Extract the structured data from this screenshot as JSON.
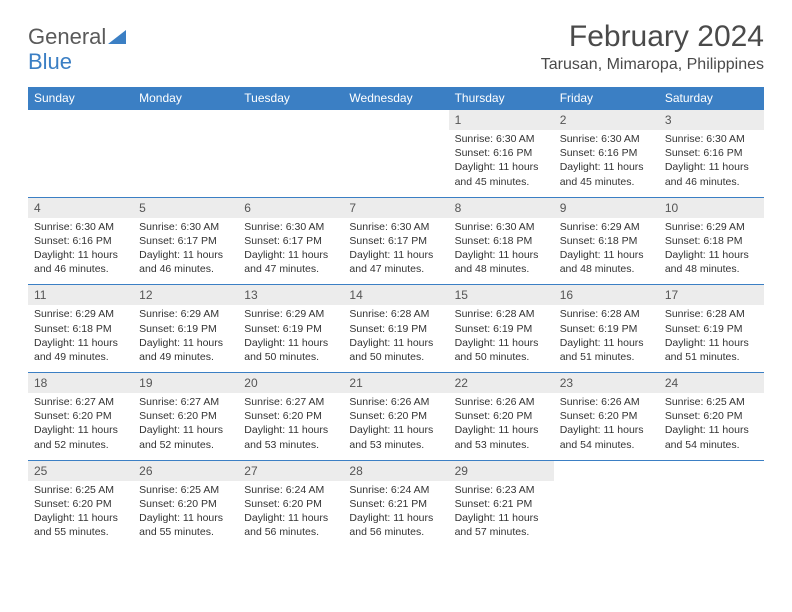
{
  "logo": {
    "text_general": "General",
    "text_blue": "Blue",
    "triangle_color": "#3b7fc4"
  },
  "title": "February 2024",
  "location": "Tarusan, Mimaropa, Philippines",
  "header_bg": "#3b7fc4",
  "header_text_color": "#ffffff",
  "daynum_bg": "#ececec",
  "divider_color": "#3b7fc4",
  "day_headers": [
    "Sunday",
    "Monday",
    "Tuesday",
    "Wednesday",
    "Thursday",
    "Friday",
    "Saturday"
  ],
  "weeks": [
    {
      "nums": [
        "",
        "",
        "",
        "",
        "1",
        "2",
        "3"
      ],
      "sunrise": [
        "",
        "",
        "",
        "",
        "Sunrise: 6:30 AM",
        "Sunrise: 6:30 AM",
        "Sunrise: 6:30 AM"
      ],
      "sunset": [
        "",
        "",
        "",
        "",
        "Sunset: 6:16 PM",
        "Sunset: 6:16 PM",
        "Sunset: 6:16 PM"
      ],
      "day1": [
        "",
        "",
        "",
        "",
        "Daylight: 11 hours",
        "Daylight: 11 hours",
        "Daylight: 11 hours"
      ],
      "day2": [
        "",
        "",
        "",
        "",
        "and 45 minutes.",
        "and 45 minutes.",
        "and 46 minutes."
      ]
    },
    {
      "nums": [
        "4",
        "5",
        "6",
        "7",
        "8",
        "9",
        "10"
      ],
      "sunrise": [
        "Sunrise: 6:30 AM",
        "Sunrise: 6:30 AM",
        "Sunrise: 6:30 AM",
        "Sunrise: 6:30 AM",
        "Sunrise: 6:30 AM",
        "Sunrise: 6:29 AM",
        "Sunrise: 6:29 AM"
      ],
      "sunset": [
        "Sunset: 6:16 PM",
        "Sunset: 6:17 PM",
        "Sunset: 6:17 PM",
        "Sunset: 6:17 PM",
        "Sunset: 6:18 PM",
        "Sunset: 6:18 PM",
        "Sunset: 6:18 PM"
      ],
      "day1": [
        "Daylight: 11 hours",
        "Daylight: 11 hours",
        "Daylight: 11 hours",
        "Daylight: 11 hours",
        "Daylight: 11 hours",
        "Daylight: 11 hours",
        "Daylight: 11 hours"
      ],
      "day2": [
        "and 46 minutes.",
        "and 46 minutes.",
        "and 47 minutes.",
        "and 47 minutes.",
        "and 48 minutes.",
        "and 48 minutes.",
        "and 48 minutes."
      ]
    },
    {
      "nums": [
        "11",
        "12",
        "13",
        "14",
        "15",
        "16",
        "17"
      ],
      "sunrise": [
        "Sunrise: 6:29 AM",
        "Sunrise: 6:29 AM",
        "Sunrise: 6:29 AM",
        "Sunrise: 6:28 AM",
        "Sunrise: 6:28 AM",
        "Sunrise: 6:28 AM",
        "Sunrise: 6:28 AM"
      ],
      "sunset": [
        "Sunset: 6:18 PM",
        "Sunset: 6:19 PM",
        "Sunset: 6:19 PM",
        "Sunset: 6:19 PM",
        "Sunset: 6:19 PM",
        "Sunset: 6:19 PM",
        "Sunset: 6:19 PM"
      ],
      "day1": [
        "Daylight: 11 hours",
        "Daylight: 11 hours",
        "Daylight: 11 hours",
        "Daylight: 11 hours",
        "Daylight: 11 hours",
        "Daylight: 11 hours",
        "Daylight: 11 hours"
      ],
      "day2": [
        "and 49 minutes.",
        "and 49 minutes.",
        "and 50 minutes.",
        "and 50 minutes.",
        "and 50 minutes.",
        "and 51 minutes.",
        "and 51 minutes."
      ]
    },
    {
      "nums": [
        "18",
        "19",
        "20",
        "21",
        "22",
        "23",
        "24"
      ],
      "sunrise": [
        "Sunrise: 6:27 AM",
        "Sunrise: 6:27 AM",
        "Sunrise: 6:27 AM",
        "Sunrise: 6:26 AM",
        "Sunrise: 6:26 AM",
        "Sunrise: 6:26 AM",
        "Sunrise: 6:25 AM"
      ],
      "sunset": [
        "Sunset: 6:20 PM",
        "Sunset: 6:20 PM",
        "Sunset: 6:20 PM",
        "Sunset: 6:20 PM",
        "Sunset: 6:20 PM",
        "Sunset: 6:20 PM",
        "Sunset: 6:20 PM"
      ],
      "day1": [
        "Daylight: 11 hours",
        "Daylight: 11 hours",
        "Daylight: 11 hours",
        "Daylight: 11 hours",
        "Daylight: 11 hours",
        "Daylight: 11 hours",
        "Daylight: 11 hours"
      ],
      "day2": [
        "and 52 minutes.",
        "and 52 minutes.",
        "and 53 minutes.",
        "and 53 minutes.",
        "and 53 minutes.",
        "and 54 minutes.",
        "and 54 minutes."
      ]
    },
    {
      "nums": [
        "25",
        "26",
        "27",
        "28",
        "29",
        "",
        ""
      ],
      "sunrise": [
        "Sunrise: 6:25 AM",
        "Sunrise: 6:25 AM",
        "Sunrise: 6:24 AM",
        "Sunrise: 6:24 AM",
        "Sunrise: 6:23 AM",
        "",
        ""
      ],
      "sunset": [
        "Sunset: 6:20 PM",
        "Sunset: 6:20 PM",
        "Sunset: 6:20 PM",
        "Sunset: 6:21 PM",
        "Sunset: 6:21 PM",
        "",
        ""
      ],
      "day1": [
        "Daylight: 11 hours",
        "Daylight: 11 hours",
        "Daylight: 11 hours",
        "Daylight: 11 hours",
        "Daylight: 11 hours",
        "",
        ""
      ],
      "day2": [
        "and 55 minutes.",
        "and 55 minutes.",
        "and 56 minutes.",
        "and 56 minutes.",
        "and 57 minutes.",
        "",
        ""
      ]
    }
  ]
}
